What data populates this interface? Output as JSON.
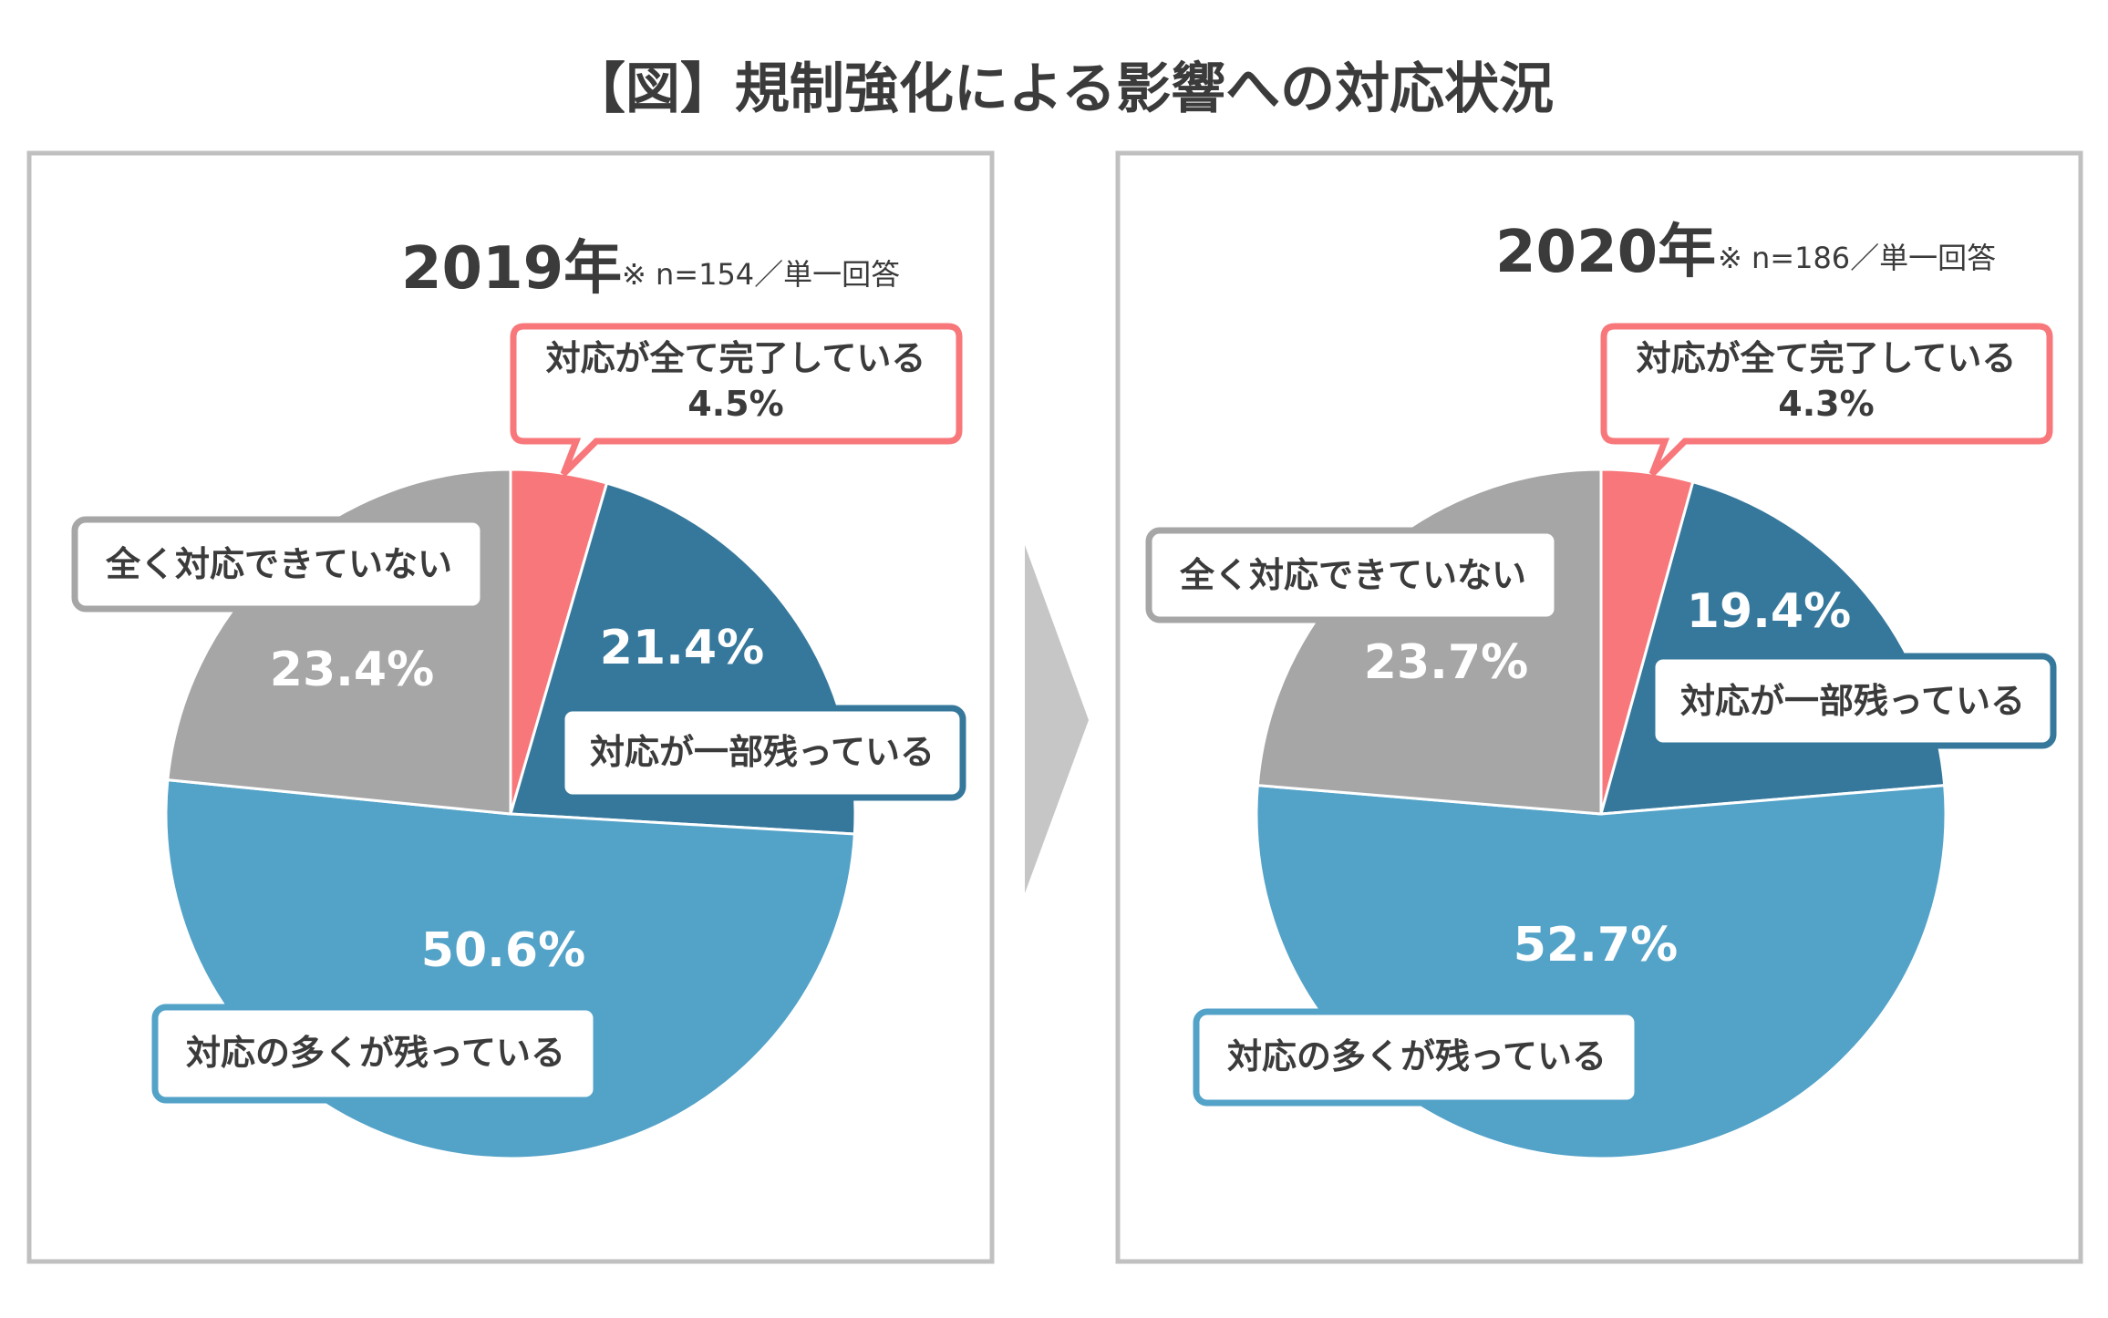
{
  "title": "【図】規制強化による影響への対応状況",
  "colors": {
    "complete": "#f7777a",
    "partial": "#36789c",
    "mostly": "#53a2c8",
    "none": "#a6a6a6",
    "panel_border": "#c0c0c0",
    "arrow": "#c6c6c6",
    "text_dark": "#3b3b3b"
  },
  "chart_data": [
    {
      "type": "pie",
      "year_label": "2019年",
      "note": "※ n=154／単一回答",
      "slices": [
        {
          "key": "complete",
          "label": "対応が全て完了している",
          "value": 4.5,
          "value_label": "4.5%"
        },
        {
          "key": "partial",
          "label": "対応が一部残っている",
          "value": 21.4,
          "value_label": "21.4%"
        },
        {
          "key": "mostly",
          "label": "対応の多くが残っている",
          "value": 50.6,
          "value_label": "50.6%"
        },
        {
          "key": "none",
          "label": "全く対応できていない",
          "value": 23.4,
          "value_label": "23.4%"
        }
      ]
    },
    {
      "type": "pie",
      "year_label": "2020年",
      "note": "※ n=186／単一回答",
      "slices": [
        {
          "key": "complete",
          "label": "対応が全て完了している",
          "value": 4.3,
          "value_label": "4.3%"
        },
        {
          "key": "partial",
          "label": "対応が一部残っている",
          "value": 19.4,
          "value_label": "19.4%"
        },
        {
          "key": "mostly",
          "label": "対応の多くが残っている",
          "value": 52.7,
          "value_label": "52.7%"
        },
        {
          "key": "none",
          "label": "全く対応できていない",
          "value": 23.7,
          "value_label": "23.7%"
        }
      ]
    }
  ]
}
